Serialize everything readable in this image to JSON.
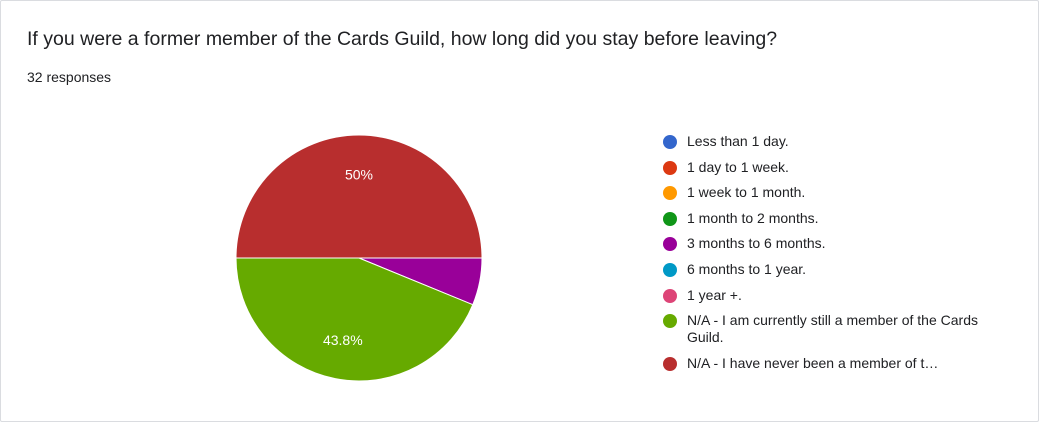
{
  "question_title": "If you were a former member of the Cards Guild, how long did you stay before leaving?",
  "response_count": "32 responses",
  "chart_data": {
    "type": "pie",
    "slices": [
      {
        "label": "Less than 1 day.",
        "value": 0,
        "color": "#3366cc"
      },
      {
        "label": "1 day to 1 week.",
        "value": 0,
        "color": "#dc3912"
      },
      {
        "label": "1 week to 1 month.",
        "value": 0,
        "color": "#ff9900"
      },
      {
        "label": "1 month to 2 months.",
        "value": 0,
        "color": "#109618"
      },
      {
        "label": "3 months to 6 months.",
        "value": 6.2,
        "color": "#990099"
      },
      {
        "label": "6 months to 1 year.",
        "value": 0,
        "color": "#0099c6"
      },
      {
        "label": "1 year +.",
        "value": 0,
        "color": "#dd4477"
      },
      {
        "label": "N/A - I am currently still a member of the Cards Guild.",
        "value": 43.8,
        "color": "#66aa00",
        "data_label": "43.8%"
      },
      {
        "label": "N/A - I have never been a member of t…",
        "value": 50,
        "color": "#b82e2e",
        "data_label": "50%"
      }
    ]
  }
}
